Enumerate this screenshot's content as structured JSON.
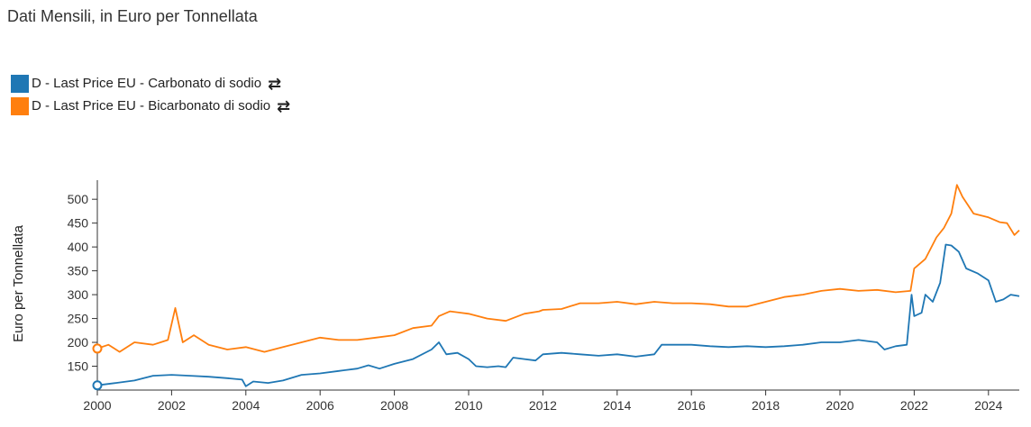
{
  "header": {
    "subtitle": "Dati Mensili, in Euro per Tonnellata"
  },
  "legend": {
    "items": [
      {
        "label": "D - Last Price EU - Carbonato di sodio",
        "color": "#1f77b4",
        "icon": "swap-arrows-icon",
        "icon_glyph": "⇄"
      },
      {
        "label": "D - Last Price EU - Bicarbonato di sodio",
        "color": "#ff7f0e",
        "icon": "swap-arrows-icon",
        "icon_glyph": "⇄"
      }
    ]
  },
  "chart_data": {
    "type": "line",
    "title": "",
    "subtitle": "Dati Mensili, in Euro per Tonnellata",
    "xlabel": "",
    "ylabel": "Euro per Tonnellata",
    "xlim": [
      2000,
      2024.83
    ],
    "ylim": [
      100,
      540
    ],
    "x_ticks": [
      "2000",
      "2002",
      "2004",
      "2006",
      "2008",
      "2010",
      "2012",
      "2014",
      "2016",
      "2018",
      "2020",
      "2022",
      "2024"
    ],
    "y_ticks": [
      150,
      200,
      250,
      300,
      350,
      400,
      450,
      500
    ],
    "grid": false,
    "legend_position": "top-left",
    "series": [
      {
        "name": "D - Last Price EU - Carbonato di sodio",
        "color": "#1f77b4",
        "points": [
          [
            2000.0,
            110
          ],
          [
            2000.5,
            115
          ],
          [
            2001.0,
            120
          ],
          [
            2001.5,
            130
          ],
          [
            2002.0,
            132
          ],
          [
            2002.5,
            130
          ],
          [
            2003.0,
            128
          ],
          [
            2003.5,
            125
          ],
          [
            2003.9,
            122
          ],
          [
            2004.0,
            108
          ],
          [
            2004.2,
            118
          ],
          [
            2004.6,
            115
          ],
          [
            2005.0,
            120
          ],
          [
            2005.5,
            132
          ],
          [
            2006.0,
            135
          ],
          [
            2006.5,
            140
          ],
          [
            2007.0,
            145
          ],
          [
            2007.3,
            152
          ],
          [
            2007.6,
            145
          ],
          [
            2008.0,
            155
          ],
          [
            2008.5,
            165
          ],
          [
            2009.0,
            185
          ],
          [
            2009.2,
            200
          ],
          [
            2009.4,
            175
          ],
          [
            2009.7,
            178
          ],
          [
            2010.0,
            165
          ],
          [
            2010.2,
            150
          ],
          [
            2010.5,
            148
          ],
          [
            2010.8,
            150
          ],
          [
            2011.0,
            148
          ],
          [
            2011.2,
            168
          ],
          [
            2011.5,
            165
          ],
          [
            2011.8,
            162
          ],
          [
            2012.0,
            175
          ],
          [
            2012.5,
            178
          ],
          [
            2013.0,
            175
          ],
          [
            2013.5,
            172
          ],
          [
            2014.0,
            175
          ],
          [
            2014.5,
            170
          ],
          [
            2015.0,
            175
          ],
          [
            2015.2,
            195
          ],
          [
            2015.5,
            195
          ],
          [
            2016.0,
            195
          ],
          [
            2016.5,
            192
          ],
          [
            2017.0,
            190
          ],
          [
            2017.5,
            192
          ],
          [
            2018.0,
            190
          ],
          [
            2018.5,
            192
          ],
          [
            2019.0,
            195
          ],
          [
            2019.5,
            200
          ],
          [
            2020.0,
            200
          ],
          [
            2020.5,
            205
          ],
          [
            2021.0,
            200
          ],
          [
            2021.2,
            185
          ],
          [
            2021.5,
            192
          ],
          [
            2021.8,
            195
          ],
          [
            2021.93,
            300
          ],
          [
            2022.0,
            255
          ],
          [
            2022.2,
            262
          ],
          [
            2022.3,
            300
          ],
          [
            2022.5,
            285
          ],
          [
            2022.7,
            325
          ],
          [
            2022.85,
            405
          ],
          [
            2023.0,
            403
          ],
          [
            2023.2,
            390
          ],
          [
            2023.4,
            355
          ],
          [
            2023.7,
            345
          ],
          [
            2024.0,
            330
          ],
          [
            2024.2,
            285
          ],
          [
            2024.4,
            290
          ],
          [
            2024.6,
            300
          ],
          [
            2024.83,
            297
          ]
        ]
      },
      {
        "name": "D - Last Price EU - Bicarbonato di sodio",
        "color": "#ff7f0e",
        "points": [
          [
            2000.0,
            187
          ],
          [
            2000.3,
            195
          ],
          [
            2000.6,
            180
          ],
          [
            2001.0,
            200
          ],
          [
            2001.5,
            195
          ],
          [
            2001.9,
            205
          ],
          [
            2002.1,
            272
          ],
          [
            2002.3,
            200
          ],
          [
            2002.6,
            215
          ],
          [
            2003.0,
            195
          ],
          [
            2003.5,
            185
          ],
          [
            2004.0,
            190
          ],
          [
            2004.5,
            180
          ],
          [
            2005.0,
            190
          ],
          [
            2005.5,
            200
          ],
          [
            2006.0,
            210
          ],
          [
            2006.5,
            205
          ],
          [
            2007.0,
            205
          ],
          [
            2007.5,
            210
          ],
          [
            2008.0,
            215
          ],
          [
            2008.5,
            230
          ],
          [
            2009.0,
            235
          ],
          [
            2009.2,
            255
          ],
          [
            2009.5,
            265
          ],
          [
            2010.0,
            260
          ],
          [
            2010.5,
            250
          ],
          [
            2011.0,
            245
          ],
          [
            2011.5,
            260
          ],
          [
            2011.9,
            265
          ],
          [
            2012.0,
            268
          ],
          [
            2012.5,
            270
          ],
          [
            2013.0,
            282
          ],
          [
            2013.5,
            282
          ],
          [
            2014.0,
            285
          ],
          [
            2014.5,
            280
          ],
          [
            2015.0,
            285
          ],
          [
            2015.5,
            282
          ],
          [
            2016.0,
            282
          ],
          [
            2016.5,
            280
          ],
          [
            2017.0,
            275
          ],
          [
            2017.5,
            275
          ],
          [
            2018.0,
            285
          ],
          [
            2018.5,
            295
          ],
          [
            2019.0,
            300
          ],
          [
            2019.5,
            308
          ],
          [
            2020.0,
            312
          ],
          [
            2020.5,
            308
          ],
          [
            2021.0,
            310
          ],
          [
            2021.5,
            305
          ],
          [
            2021.9,
            308
          ],
          [
            2022.0,
            355
          ],
          [
            2022.3,
            375
          ],
          [
            2022.6,
            420
          ],
          [
            2022.8,
            440
          ],
          [
            2023.0,
            470
          ],
          [
            2023.15,
            530
          ],
          [
            2023.3,
            505
          ],
          [
            2023.6,
            470
          ],
          [
            2024.0,
            462
          ],
          [
            2024.3,
            452
          ],
          [
            2024.5,
            450
          ],
          [
            2024.7,
            425
          ],
          [
            2024.83,
            435
          ]
        ]
      }
    ]
  }
}
